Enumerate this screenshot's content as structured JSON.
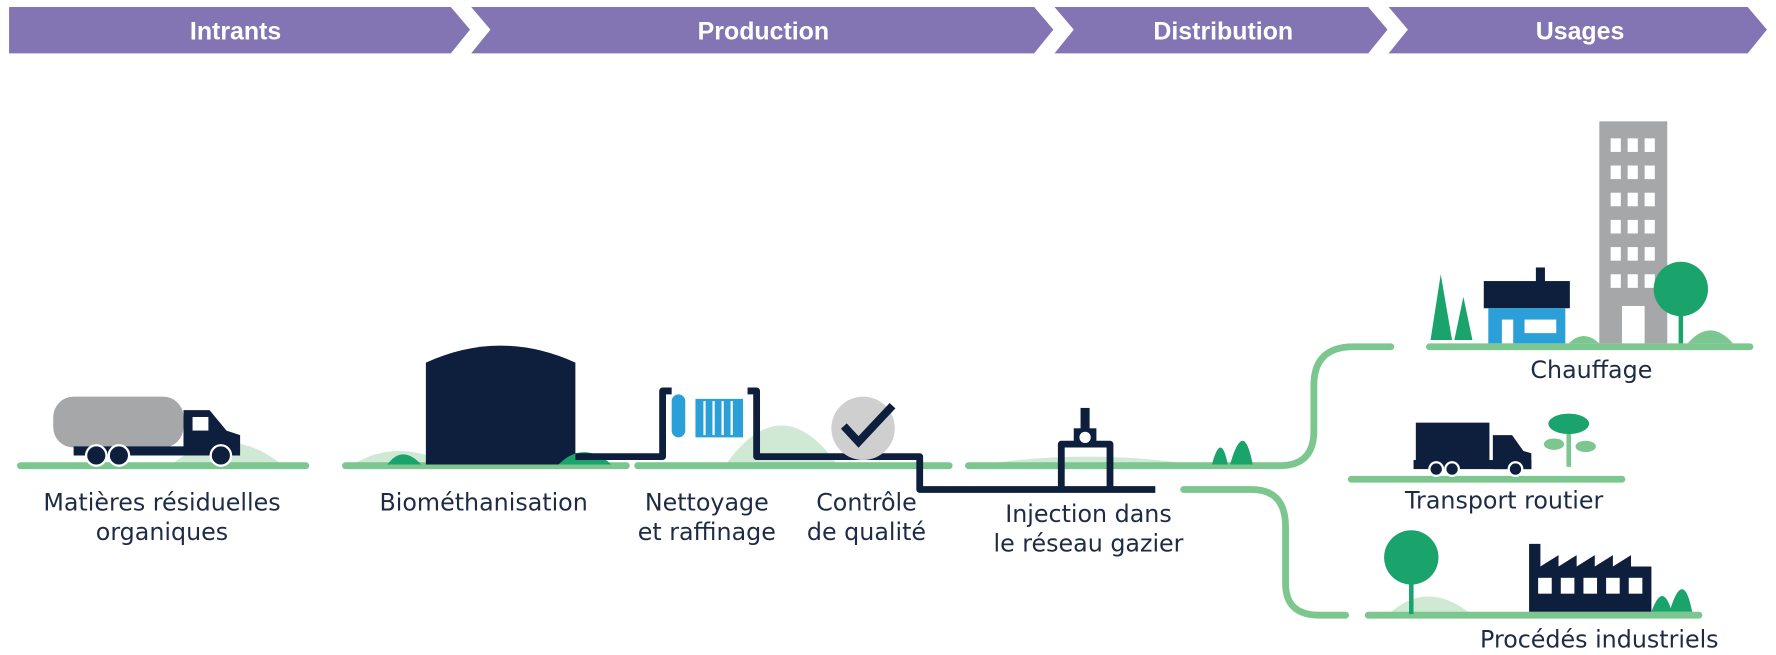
{
  "header": {
    "stages": [
      "Intrants",
      "Production",
      "Distribution",
      "Usages"
    ]
  },
  "steps": [
    {
      "lines": [
        "Matières résiduelles",
        "organiques"
      ]
    },
    {
      "lines": [
        "Biométhanisation"
      ]
    },
    {
      "lines": [
        "Nettoyage",
        "et raffinage"
      ]
    },
    {
      "lines": [
        "Contrôle",
        "de qualité"
      ]
    },
    {
      "lines": [
        "Injection dans",
        "le réseau gazier"
      ]
    }
  ],
  "usages": [
    {
      "lines": [
        "Chauffage"
      ]
    },
    {
      "lines": [
        "Transport routier"
      ]
    },
    {
      "lines": [
        "Procédés industriels"
      ]
    }
  ]
}
